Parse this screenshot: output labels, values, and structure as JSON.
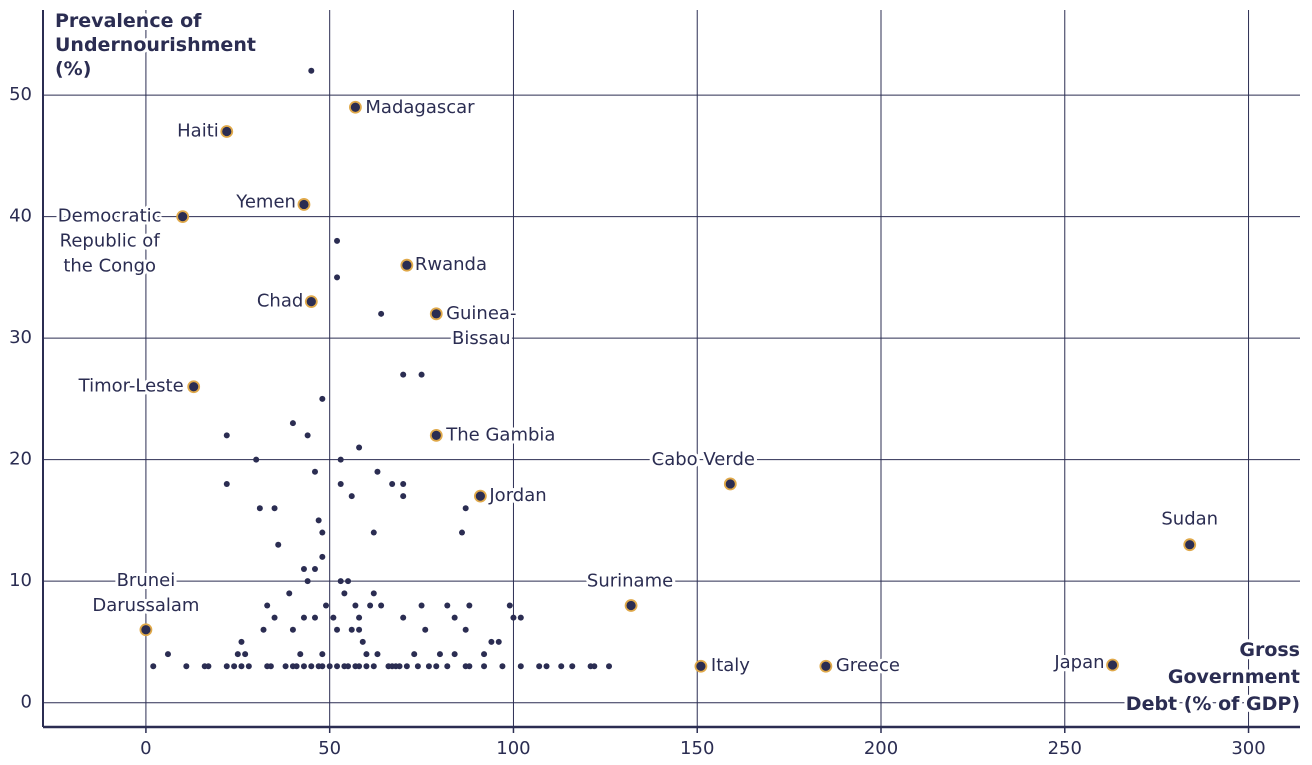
{
  "chart_data": {
    "type": "scatter",
    "y_label": "Prevalence of Undernourishment (%)",
    "x_label": "Gross Government Debt (% of GDP)",
    "xlim": [
      -28,
      314
    ],
    "ylim": [
      -2,
      57
    ],
    "xticks": [
      0,
      50,
      100,
      150,
      200,
      250,
      300
    ],
    "yticks": [
      0,
      10,
      20,
      30,
      40,
      50
    ],
    "grid": true,
    "color": "#2b2d52",
    "highlight_color": "#e0a94a",
    "x": [
      45,
      52,
      52,
      64,
      70,
      75,
      48,
      40,
      22,
      44,
      58,
      30,
      53,
      63,
      46,
      22,
      53,
      67,
      70,
      56,
      70,
      87,
      31,
      35,
      47,
      48,
      62,
      86,
      36,
      48,
      43,
      46,
      44,
      53,
      55,
      39,
      54,
      62,
      33,
      49,
      57,
      61,
      64,
      75,
      82,
      88,
      99,
      35,
      43,
      46,
      51,
      58,
      70,
      84,
      100,
      102,
      32,
      40,
      52,
      56,
      58,
      76,
      87,
      26,
      59,
      94,
      96,
      25,
      27,
      42,
      48,
      60,
      63,
      73,
      80,
      84,
      92,
      6,
      2,
      11,
      16,
      17,
      22,
      24,
      26,
      28,
      33,
      34,
      38,
      40,
      41,
      43,
      45,
      47,
      48,
      50,
      52,
      54,
      55,
      57,
      58,
      60,
      62,
      66,
      67,
      68,
      69,
      71,
      74,
      77,
      79,
      82,
      87,
      88,
      92,
      97,
      102,
      107,
      109,
      113,
      116,
      121,
      122,
      126
    ],
    "values": [
      52,
      38,
      35,
      32,
      27,
      27,
      25,
      23,
      22,
      22,
      21,
      20,
      20,
      19,
      19,
      18,
      18,
      18,
      18,
      17,
      17,
      16,
      16,
      16,
      15,
      14,
      14,
      14,
      13,
      12,
      11,
      11,
      10,
      10,
      10,
      9,
      9,
      9,
      8,
      8,
      8,
      8,
      8,
      8,
      8,
      8,
      8,
      7,
      7,
      7,
      7,
      7,
      7,
      7,
      7,
      7,
      6,
      6,
      6,
      6,
      6,
      6,
      6,
      5,
      5,
      5,
      5,
      4,
      4,
      4,
      4,
      4,
      4,
      4,
      4,
      4,
      4,
      4,
      3,
      3,
      3,
      3,
      3,
      3,
      3,
      3,
      3,
      3,
      3,
      3,
      3,
      3,
      3,
      3,
      3,
      3,
      3,
      3,
      3,
      3,
      3,
      3,
      3,
      3,
      3,
      3,
      3,
      3,
      3,
      3,
      3,
      3,
      3,
      3,
      3,
      3,
      3,
      3,
      3,
      3,
      3,
      3,
      3,
      3
    ],
    "annotations": [
      {
        "label": "Madagascar",
        "x": 57,
        "y": 49
      },
      {
        "label": "Haiti",
        "x": 22,
        "y": 47
      },
      {
        "label": "Yemen",
        "x": 43,
        "y": 41
      },
      {
        "label": "Democratic Republic of the Congo",
        "x": 10,
        "y": 40
      },
      {
        "label": "Rwanda",
        "x": 71,
        "y": 36
      },
      {
        "label": "Chad",
        "x": 45,
        "y": 33
      },
      {
        "label": "Guinea-Bissau",
        "x": 79,
        "y": 32
      },
      {
        "label": "Timor-Leste",
        "x": 13,
        "y": 26
      },
      {
        "label": "The Gambia",
        "x": 79,
        "y": 22
      },
      {
        "label": "Jordan",
        "x": 91,
        "y": 17
      },
      {
        "label": "Cabo Verde",
        "x": 159,
        "y": 18
      },
      {
        "label": "Sudan",
        "x": 284,
        "y": 13
      },
      {
        "label": "Suriname",
        "x": 132,
        "y": 8
      },
      {
        "label": "Brunei Darussalam",
        "x": 0,
        "y": 6
      },
      {
        "label": "Italy",
        "x": 151,
        "y": 3
      },
      {
        "label": "Greece",
        "x": 185,
        "y": 3
      },
      {
        "label": "Japan",
        "x": 263,
        "y": 3.1
      }
    ]
  }
}
